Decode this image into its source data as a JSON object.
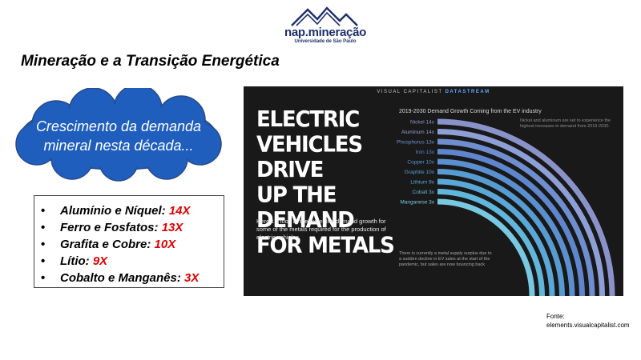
{
  "logo": {
    "name": "nap.mineração",
    "sub": "Universidade de São Paulo"
  },
  "title": "Mineração e a Transição Energética",
  "cloud": {
    "line1": "Crescimento da demanda",
    "line2": "mineral nesta década..."
  },
  "bullets": [
    {
      "label": "Alumínio e Níquel: ",
      "value": "14X"
    },
    {
      "label": "Ferro e Fosfatos: ",
      "value": "13X"
    },
    {
      "label": "Grafita e Cobre: ",
      "value": "10X"
    },
    {
      "label": "Lítio: ",
      "value": "9X"
    },
    {
      "label": "Cobalto e Manganês: ",
      "value": "3X"
    }
  ],
  "infographic": {
    "header_a": "VISUAL CAPITALIST",
    "header_b": "DATASTREAM",
    "headline": [
      "ELECTRIC",
      "VEHICLES DRIVE",
      "UP THE DEMAND",
      "FOR METALS"
    ],
    "subtext": "Here's a look at the expected demand growth for some of the metals required for the production of electric vehicles.",
    "chart_title": "2019-2030 Demand Growth Coming from the EV industry",
    "note": "Nickel and aluminum are set to experience the highest increases in demand from 2019-2030.",
    "footnote": "There is currently a metal supply surplus due to a sudden decline in EV sales at the start of the pandemic, but sales are now bouncing back",
    "metals": [
      {
        "label": "Nickel 14x",
        "value": 14,
        "color": "#8a93c9"
      },
      {
        "label": "Aluminum 14x",
        "value": 14,
        "color": "#8d9fd6"
      },
      {
        "label": "Phosphorus 13x",
        "value": 13,
        "color": "#6f8ed0"
      },
      {
        "label": "Iron 13x",
        "value": 13,
        "color": "#5d86cd"
      },
      {
        "label": "Copper 10x",
        "value": 10,
        "color": "#5a90cf"
      },
      {
        "label": "Graphite 10x",
        "value": 10,
        "color": "#579bd3"
      },
      {
        "label": "Lithium 9x",
        "value": 9,
        "color": "#5aa8d8"
      },
      {
        "label": "Cobalt 3x",
        "value": 3,
        "color": "#61b6dc"
      },
      {
        "label": "Manganese 3x",
        "value": 3,
        "color": "#79c8e2"
      }
    ]
  },
  "source": {
    "line1": "Fonte:",
    "line2": "elements.visualcapitalist.com"
  }
}
